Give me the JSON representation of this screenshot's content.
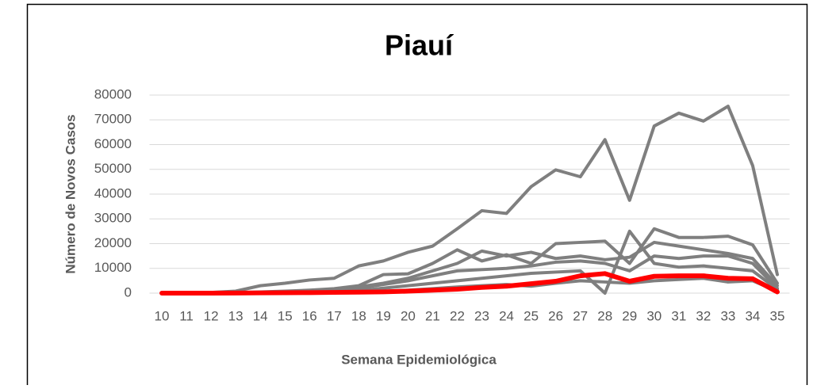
{
  "chart_data": {
    "type": "line",
    "title": "Piauí",
    "x_label": "Semana Epidemiológica",
    "y_label": "Número de Novos Casos",
    "categories": [
      "10",
      "11",
      "12",
      "13",
      "14",
      "15",
      "16",
      "17",
      "18",
      "19",
      "20",
      "21",
      "22",
      "23",
      "24",
      "25",
      "26",
      "27",
      "28",
      "29",
      "30",
      "31",
      "32",
      "33",
      "34",
      "35"
    ],
    "ylim": [
      0,
      80000
    ],
    "yticks": [
      0,
      10000,
      20000,
      30000,
      40000,
      50000,
      60000,
      70000,
      80000
    ],
    "grid": true,
    "series": [
      {
        "color": "#7f7f7f",
        "values": [
          0,
          100,
          300,
          800,
          3000,
          4000,
          5300,
          6000,
          11000,
          13000,
          16500,
          19000,
          26000,
          33300,
          32200,
          43000,
          49800,
          47000,
          62000,
          37500,
          67500,
          72700,
          69500,
          75500,
          51500,
          7500
        ]
      },
      {
        "color": "#7f7f7f",
        "values": [
          0,
          0,
          50,
          200,
          500,
          800,
          1200,
          1800,
          3000,
          7500,
          7800,
          12000,
          17500,
          13000,
          15500,
          12000,
          20000,
          20500,
          21000,
          12000,
          26000,
          22500,
          22500,
          23000,
          19500,
          4000
        ]
      },
      {
        "color": "#7f7f7f",
        "values": [
          0,
          0,
          20,
          100,
          300,
          500,
          800,
          1200,
          2500,
          4000,
          6000,
          9000,
          12000,
          17000,
          15000,
          16500,
          14000,
          15000,
          13500,
          14500,
          20500,
          19000,
          17500,
          16000,
          14000,
          3000
        ]
      },
      {
        "color": "#7f7f7f",
        "values": [
          0,
          0,
          10,
          50,
          200,
          400,
          700,
          1000,
          2000,
          3500,
          5000,
          7000,
          9000,
          9500,
          10000,
          11000,
          12500,
          13000,
          12000,
          9000,
          15000,
          14000,
          15000,
          15000,
          12000,
          2000
        ]
      },
      {
        "color": "#7f7f7f",
        "values": [
          0,
          0,
          10,
          30,
          100,
          200,
          400,
          600,
          1000,
          2000,
          3000,
          4000,
          5000,
          6000,
          7000,
          8000,
          8500,
          9000,
          0,
          25000,
          12000,
          10500,
          11000,
          10000,
          9000,
          1500
        ]
      },
      {
        "color": "#7f7f7f",
        "values": [
          0,
          0,
          5,
          20,
          50,
          100,
          200,
          300,
          500,
          800,
          1200,
          1800,
          2500,
          3000,
          3500,
          2800,
          4000,
          5000,
          4500,
          4000,
          5000,
          5500,
          6000,
          4500,
          5000,
          800
        ]
      },
      {
        "color": "#ff0000",
        "values": [
          0,
          0,
          20,
          50,
          100,
          150,
          200,
          300,
          400,
          500,
          800,
          1200,
          1600,
          2300,
          2800,
          3800,
          4800,
          7000,
          7900,
          4800,
          6800,
          7000,
          7000,
          6000,
          5800,
          500
        ]
      }
    ]
  }
}
